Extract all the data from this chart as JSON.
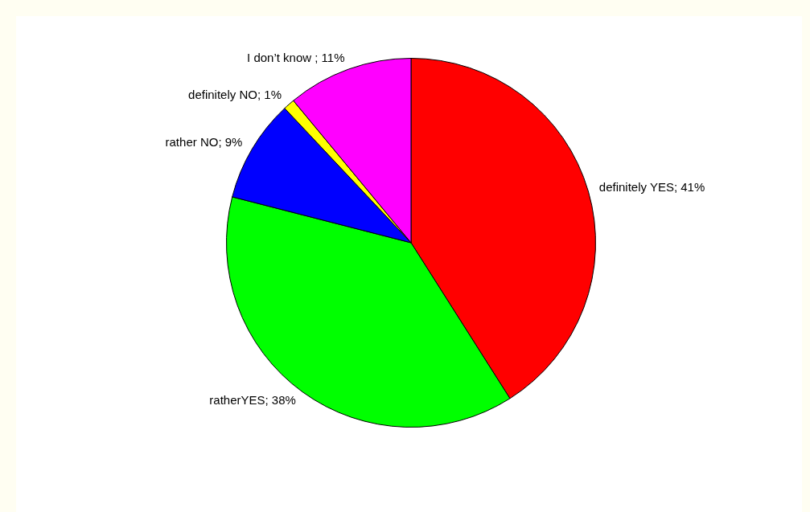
{
  "chart_data": {
    "type": "pie",
    "categories": [
      "definitely YES; 41%",
      "ratherYES; 38%",
      "rather NO; 9%",
      "definitely NO; 1%",
      "I don’t know ; 11%"
    ],
    "values": [
      41,
      38,
      9,
      1,
      11
    ],
    "colors": [
      "#ff0000",
      "#00ff00",
      "#0000ff",
      "#ffff00",
      "#ff00ff"
    ],
    "legend": false
  }
}
